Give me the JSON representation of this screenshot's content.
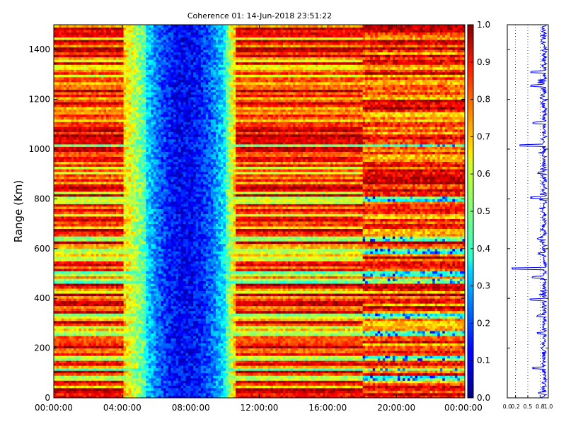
{
  "chart_data": [
    {
      "type": "heatmap",
      "title": "Coherence 01: 14-Jun-2018 23:51:22",
      "xlabel": "",
      "ylabel": "Range (Km)",
      "xlim": [
        "00:00:00",
        "24:00:00"
      ],
      "ylim": [
        0,
        1500
      ],
      "x_ticks": [
        "00:00:00",
        "04:00:00",
        "08:00:00",
        "12:00:00",
        "16:00:00",
        "20:00:00",
        "00:00:00"
      ],
      "y_ticks": [
        0,
        200,
        400,
        600,
        800,
        1000,
        1200,
        1400
      ],
      "value_range": [
        0.0,
        1.0
      ],
      "colormap": "jet",
      "x_bins": 165,
      "y_bins": 150,
      "low_coherence_window": [
        "05:20:00",
        "10:00:00"
      ],
      "transition_time": "18:00:00",
      "low_coherence_ranges_km": [
        80,
        115,
        160,
        260,
        330,
        470,
        500,
        590,
        640,
        800,
        1015
      ],
      "grid": false,
      "legend": "none"
    },
    {
      "type": "colorbar",
      "ticks": [
        "0.0",
        "0.1",
        "0.2",
        "0.3",
        "0.4",
        "0.5",
        "0.6",
        "0.7",
        "0.8",
        "0.9",
        "1.0"
      ],
      "value_range": [
        0.0,
        1.0
      ]
    },
    {
      "type": "line",
      "title": "",
      "xlabel": "",
      "ylabel": "",
      "xlim": [
        0.0,
        1.0
      ],
      "ylim": [
        0,
        1500
      ],
      "x_ticks": [
        "0.0",
        "0.2",
        "0.5",
        "0.8",
        "1.0"
      ],
      "x_tick_values": [
        0.0,
        0.2,
        0.5,
        0.8,
        1.0
      ],
      "y_ticks": [
        0,
        200,
        400,
        600,
        800,
        1000,
        1200,
        1400
      ],
      "gridlines_x": [
        0.2,
        0.5,
        0.8
      ],
      "grid_style": "dotted",
      "line_color": "#0000ff",
      "mean_value": 0.9,
      "dips": [
        {
          "range": 20,
          "value": 0.75
        },
        {
          "range": 120,
          "value": 0.6
        },
        {
          "range": 200,
          "value": 0.8
        },
        {
          "range": 260,
          "value": 0.72
        },
        {
          "range": 330,
          "value": 0.7
        },
        {
          "range": 395,
          "value": 0.55
        },
        {
          "range": 485,
          "value": 0.6
        },
        {
          "range": 520,
          "value": 0.1
        },
        {
          "range": 580,
          "value": 0.75
        },
        {
          "range": 640,
          "value": 0.72
        },
        {
          "range": 805,
          "value": 0.55
        },
        {
          "range": 905,
          "value": 0.72
        },
        {
          "range": 1015,
          "value": 0.28
        },
        {
          "range": 1105,
          "value": 0.6
        },
        {
          "range": 1205,
          "value": 0.8
        },
        {
          "range": 1255,
          "value": 0.55
        },
        {
          "range": 1310,
          "value": 0.55
        },
        {
          "range": 1435,
          "value": 0.8
        }
      ]
    }
  ]
}
